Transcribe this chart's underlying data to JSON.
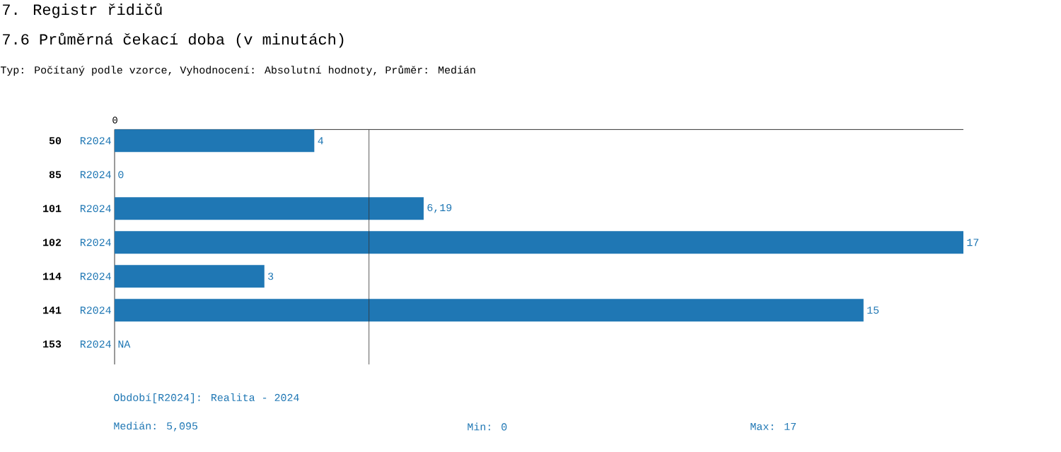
{
  "chart_data": {
    "type": "bar",
    "orientation": "horizontal",
    "title": "7. Registr řidičů",
    "subtitle": "7.6 Průměrná čekací doba (v minutách)",
    "annotations": [
      "Typ: Počítaný podle vzorce, Vyhodnocení: Absolutní hodnoty, Průměr: Medián",
      "Období[R2024]: Realita - 2024",
      "Medián: 5,095",
      "Min: 0",
      "Max: 17",
      "0"
    ],
    "categories": [
      "50",
      "85",
      "101",
      "102",
      "114",
      "141",
      "153"
    ],
    "series": [
      {
        "name": "R2024",
        "color": "#1f77b4",
        "values": [
          4,
          0,
          6.19,
          17,
          3,
          15,
          null
        ],
        "value_labels": [
          "4",
          "0",
          "6,19",
          "17",
          "3",
          "15",
          "NA"
        ]
      }
    ],
    "ref_lines": [
      {
        "axis": "x",
        "value": 5.095,
        "color": "#333333"
      }
    ]
  }
}
